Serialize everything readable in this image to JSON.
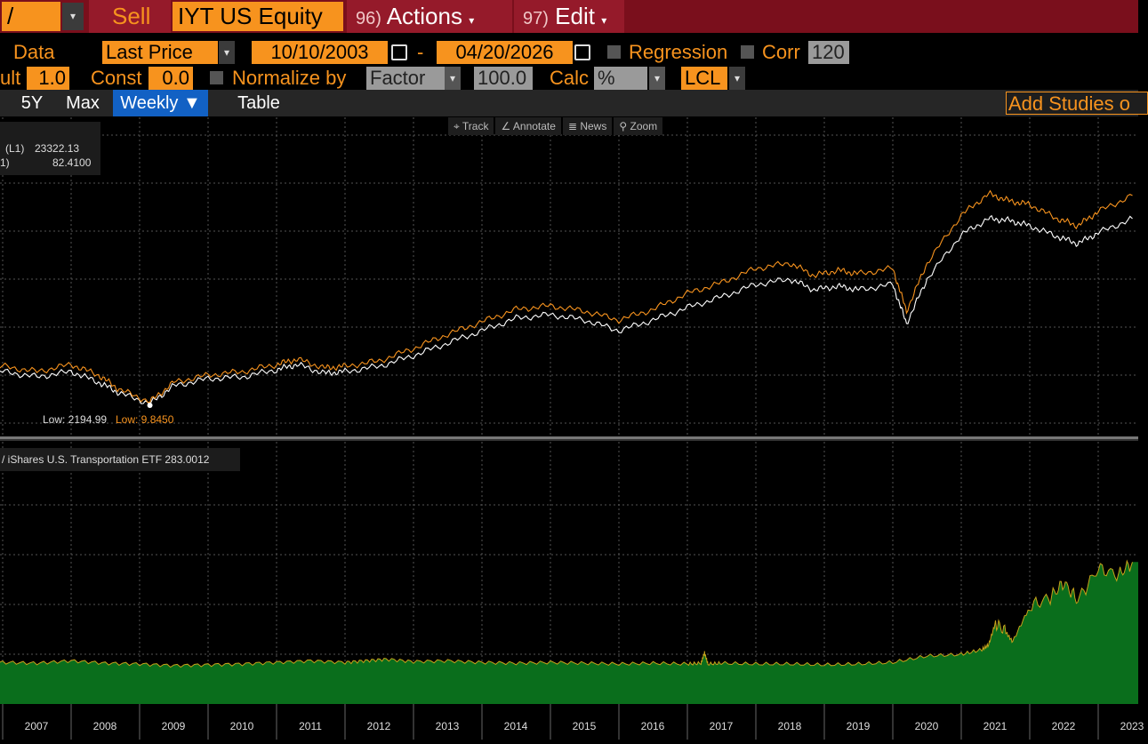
{
  "header": {
    "command_value": "/",
    "sell_label": "Sell",
    "ticker": "IYT US Equity",
    "actions_num": "96)",
    "actions_label": "Actions",
    "edit_num": "97)",
    "edit_label": "Edit",
    "dropdown_glyph": "▾"
  },
  "controls": {
    "data_label": "Data",
    "data_value": "Last Price",
    "start_date": "10/10/2003",
    "date_sep": "-",
    "end_date": "04/20/2026",
    "regression_label": "Regression",
    "corr_label": "Corr",
    "corr_value": "120",
    "mult_label": "ult",
    "mult_value": "1.0",
    "const_label": "Const",
    "const_value": "0.0",
    "normalize_label": "Normalize by",
    "normalize_value": "Factor",
    "factor_value": "100.0",
    "calc_label": "Calc",
    "calc_value": "%",
    "lcl_value": "LCL"
  },
  "tabs": {
    "items": [
      "5Y",
      "Max",
      "Weekly ▼",
      "Table"
    ],
    "active_index": 2,
    "add_studies": "Add Studies o"
  },
  "toolbar": {
    "track": "Track",
    "annotate": "Annotate",
    "news": "News",
    "zoom": "Zoom",
    "track_icon": "crosshair-icon",
    "annotate_icon": "pen-icon",
    "news_icon": "news-icon",
    "zoom_icon": "zoom-icon"
  },
  "legend_top": {
    "row1_label": "(L1)",
    "row1_value": "23322.13",
    "row2_label": "1)",
    "row2_value": "82.4100",
    "low1": "Low: 2194.99",
    "low2": "Low: 9.8450"
  },
  "legend_bottom": {
    "text": "/ iShares U.S. Transportation ETF 283.0012"
  },
  "colors": {
    "accent_orange": "#f7931e",
    "header_red": "#7a0f1c",
    "active_tab": "#1261c4",
    "white_series": "#ffffff",
    "orange_series": "#f7931e",
    "area_fill": "#0a6e1c",
    "area_line": "#c7a21a"
  },
  "chart_data": [
    {
      "type": "line",
      "x": [
        2006.5,
        2007,
        2007.5,
        2008,
        2008.4,
        2008.7,
        2009.15,
        2009.5,
        2010,
        2010.5,
        2011,
        2011.3,
        2011.7,
        2012,
        2012.5,
        2013,
        2013.5,
        2014,
        2014.5,
        2015,
        2015.5,
        2016,
        2016.5,
        2017,
        2017.5,
        2018,
        2018.5,
        2018.85,
        2019.2,
        2019.5,
        2020,
        2020.2,
        2020.5,
        2021,
        2021.4,
        2021.7,
        2022,
        2022.4,
        2022.7,
        2023,
        2023.5
      ],
      "series": [
        {
          "name": "(L1)",
          "values": [
            0.64,
            0.66,
            0.63,
            0.66,
            0.6,
            0.54,
            0.48,
            0.58,
            0.62,
            0.63,
            0.67,
            0.7,
            0.65,
            0.66,
            0.69,
            0.75,
            0.82,
            0.89,
            0.96,
            0.98,
            0.95,
            0.89,
            0.95,
            1.02,
            1.08,
            1.15,
            1.18,
            1.12,
            1.14,
            1.12,
            1.15,
            0.93,
            1.18,
            1.43,
            1.52,
            1.51,
            1.48,
            1.42,
            1.38,
            1.44,
            1.52
          ]
        },
        {
          "name": "1)",
          "values": [
            0.66,
            0.69,
            0.66,
            0.7,
            0.64,
            0.56,
            0.49,
            0.6,
            0.64,
            0.66,
            0.7,
            0.73,
            0.68,
            0.69,
            0.72,
            0.79,
            0.87,
            0.94,
            1.01,
            1.03,
            1.0,
            0.95,
            1.01,
            1.1,
            1.16,
            1.24,
            1.27,
            1.2,
            1.23,
            1.21,
            1.24,
            1.0,
            1.27,
            1.54,
            1.66,
            1.62,
            1.6,
            1.52,
            1.48,
            1.56,
            1.65
          ]
        }
      ],
      "annotations": [
        "Low: 2194.99",
        "Low: 9.8450"
      ]
    },
    {
      "type": "area",
      "name": "iShares U.S. Transportation ETF",
      "x": [
        2006.5,
        2007,
        2007.5,
        2008,
        2008.5,
        2009,
        2009.5,
        2010,
        2010.5,
        2011,
        2011.5,
        2012,
        2012.3,
        2012.6,
        2013,
        2013.5,
        2014,
        2014.5,
        2015,
        2015.5,
        2016,
        2016.5,
        2017,
        2017.2,
        2017.25,
        2017.3,
        2017.5,
        2018,
        2018.5,
        2019,
        2019.5,
        2020,
        2020.5,
        2021,
        2021.3,
        2021.4,
        2021.5,
        2021.65,
        2021.75,
        2022,
        2022.3,
        2022.5,
        2022.7,
        2023,
        2023.3,
        2023.5
      ],
      "values": [
        48,
        50,
        49,
        52,
        49,
        48,
        46,
        47,
        48,
        50,
        52,
        50,
        52,
        54,
        51,
        52,
        50,
        49,
        50,
        49,
        48,
        49,
        48,
        49,
        62,
        48,
        49,
        48,
        48,
        47,
        48,
        50,
        58,
        60,
        66,
        72,
        100,
        88,
        76,
        120,
        132,
        150,
        128,
        168,
        160,
        176
      ],
      "series_value": "283.0012"
    }
  ],
  "x_axis": {
    "tick_labels": [
      "2007",
      "2008",
      "2009",
      "2010",
      "2011",
      "2012",
      "2013",
      "2014",
      "2015",
      "2016",
      "2017",
      "2018",
      "2019",
      "2020",
      "2021",
      "2022",
      "2023"
    ]
  }
}
